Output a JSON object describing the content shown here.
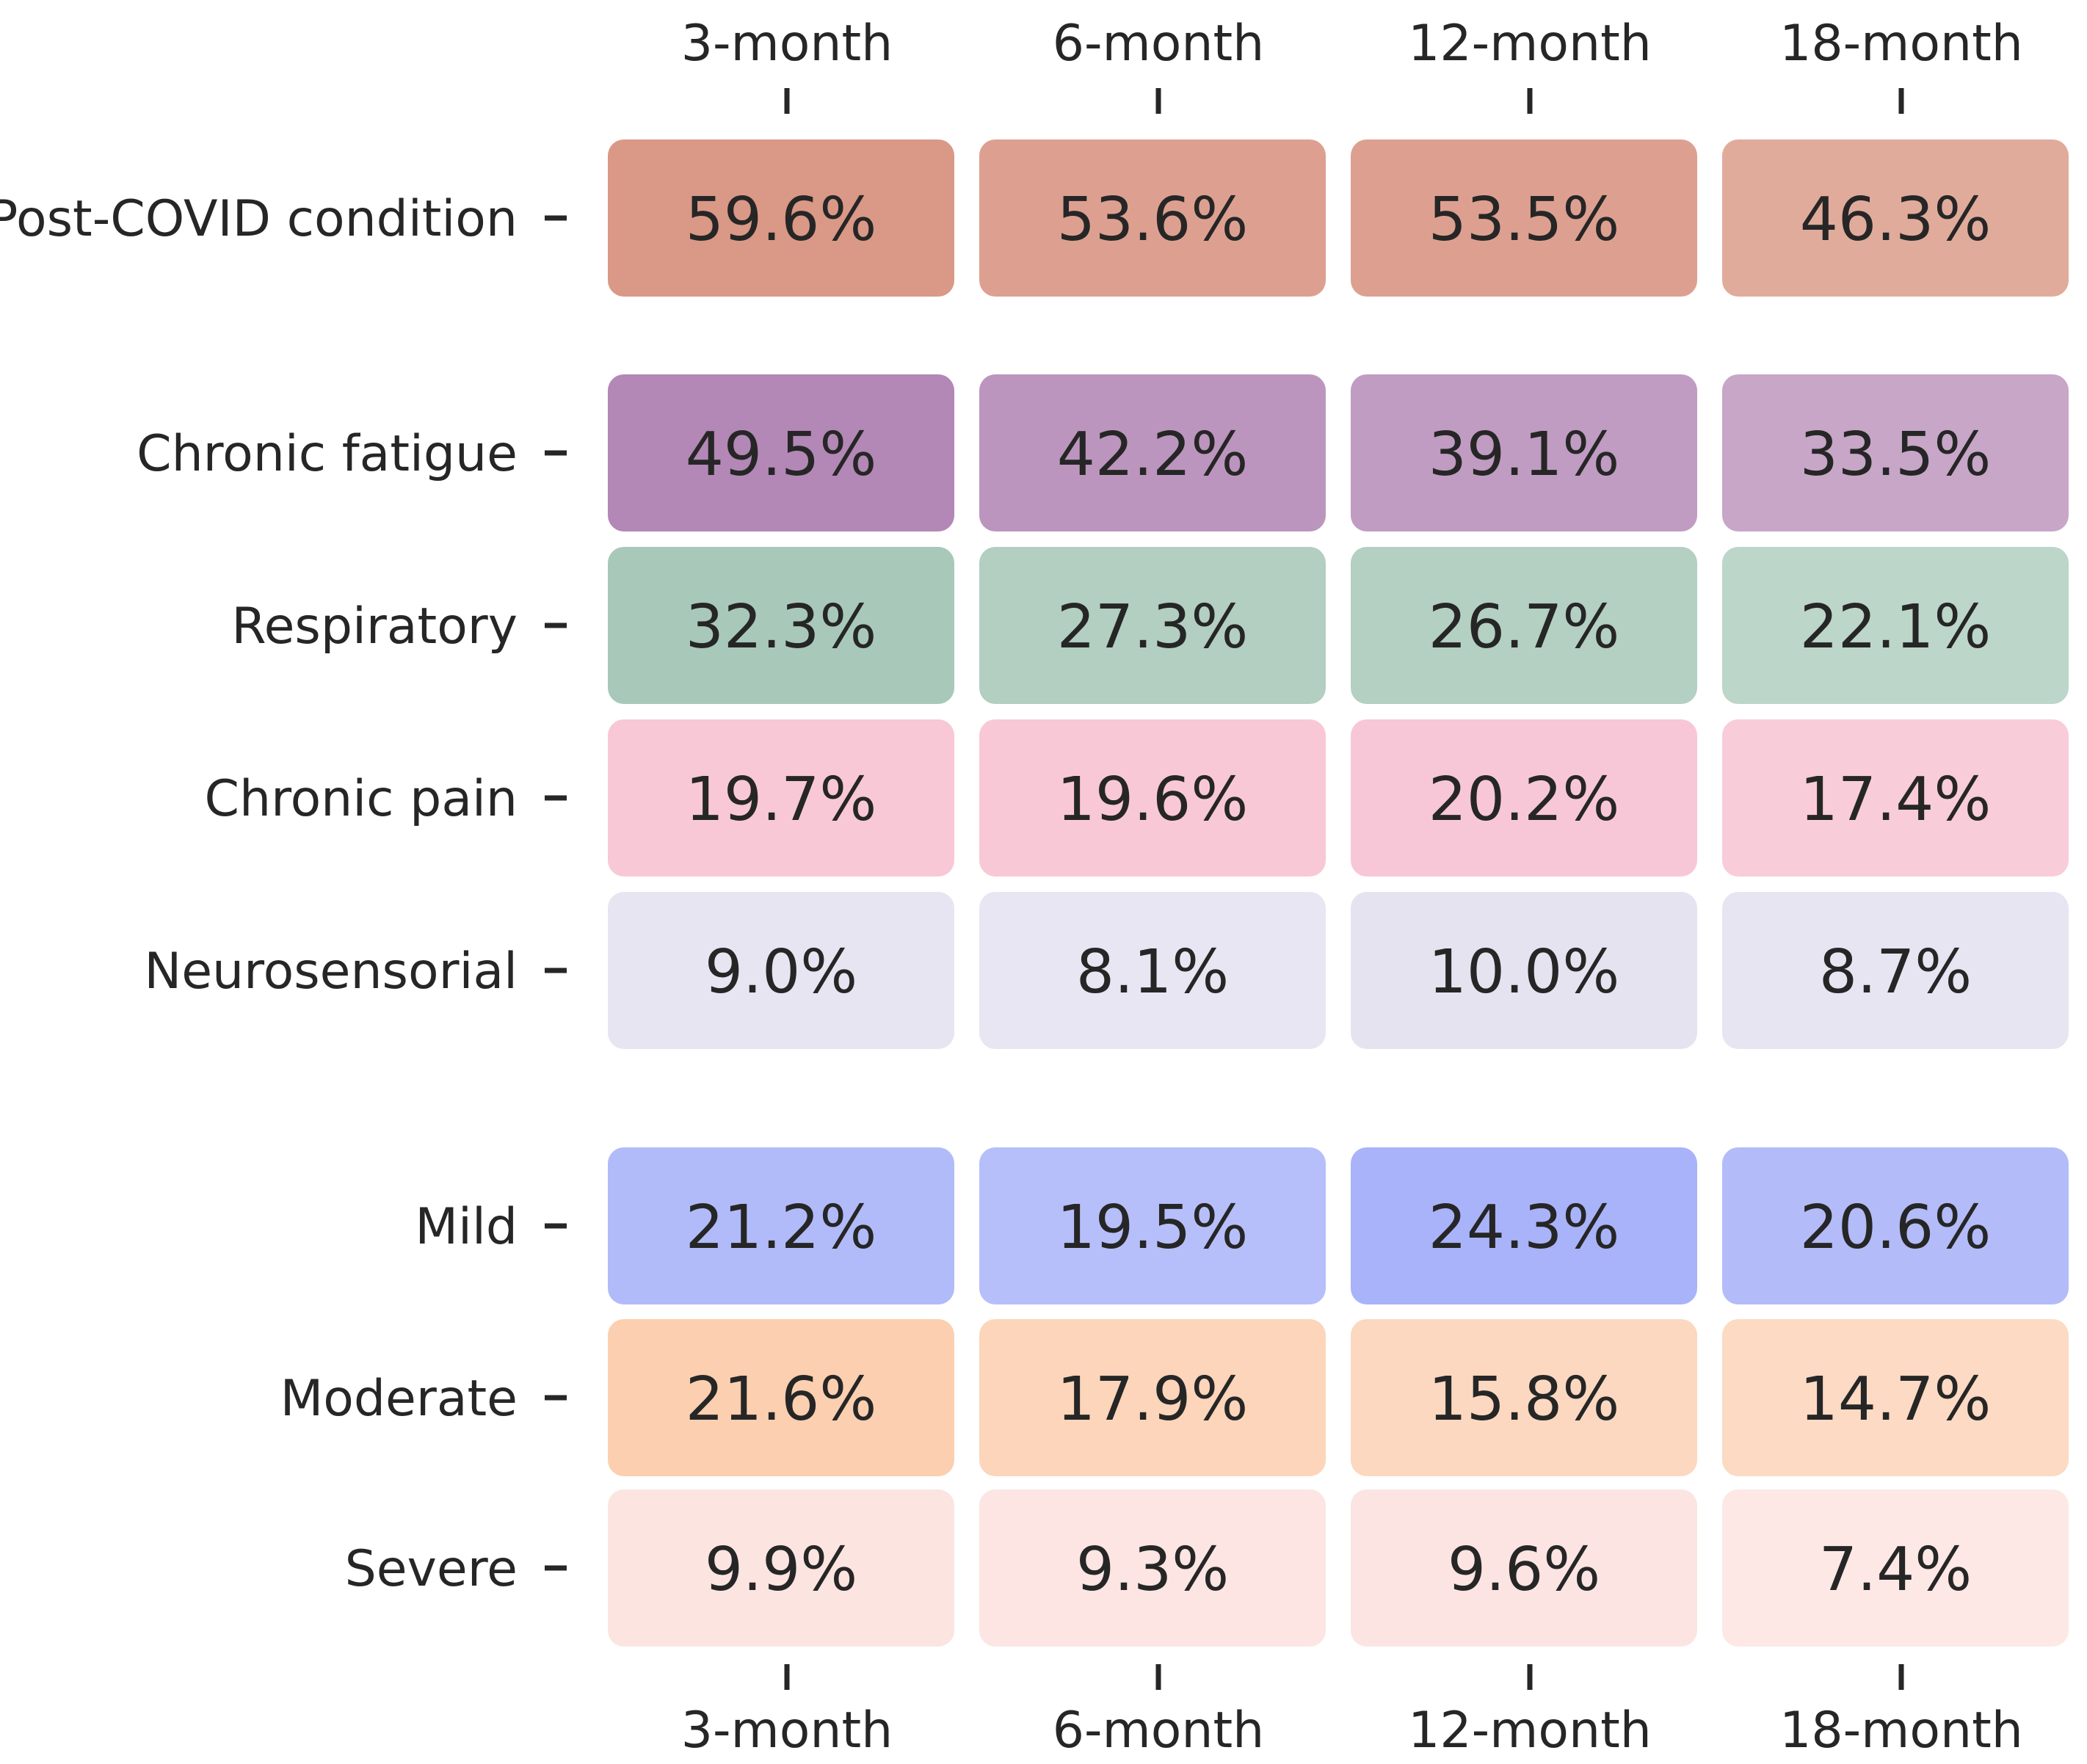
{
  "chart_data": {
    "type": "heatmap",
    "title": "",
    "xlabel": "",
    "ylabel": "",
    "columns": [
      "3-month",
      "6-month",
      "12-month",
      "18-month"
    ],
    "groups": [
      {
        "rows": [
          {
            "label": "Post-COVID condition",
            "values": [
              59.6,
              53.6,
              53.5,
              46.3
            ],
            "display": [
              "59.6%",
              "53.6%",
              "53.5%",
              "46.3%"
            ],
            "color": "#c8654a",
            "max": 65
          }
        ]
      },
      {
        "rows": [
          {
            "label": "Chronic fatigue",
            "values": [
              49.5,
              42.2,
              39.1,
              33.5
            ],
            "display": [
              "49.5%",
              "42.2%",
              "39.1%",
              "33.5%"
            ],
            "color": "#7c2f80",
            "max": 65
          },
          {
            "label": "Respiratory",
            "values": [
              32.3,
              27.3,
              26.7,
              22.1
            ],
            "display": [
              "32.3%",
              "27.3%",
              "26.7%",
              "22.1%"
            ],
            "color": "#2f7f58",
            "max": 65
          },
          {
            "label": "Chronic pain",
            "values": [
              19.7,
              19.6,
              20.2,
              17.4
            ],
            "display": [
              "19.7%",
              "19.6%",
              "20.2%",
              "17.4%"
            ],
            "color": "#ee6f97",
            "max": 45
          },
          {
            "label": "Neurosensorial",
            "values": [
              9.0,
              8.1,
              10.0,
              8.7
            ],
            "display": [
              "9.0%",
              "8.1%",
              "10.0%",
              "8.7%"
            ],
            "color": "#9b92c9",
            "max": 45
          }
        ]
      },
      {
        "rows": [
          {
            "label": "Mild",
            "values": [
              21.2,
              19.5,
              24.3,
              20.6
            ],
            "display": [
              "21.2%",
              "19.5%",
              "24.3%",
              "20.6%"
            ],
            "color": "#4d63f2",
            "max": 40
          },
          {
            "label": "Moderate",
            "values": [
              21.6,
              17.9,
              15.8,
              14.7
            ],
            "display": [
              "21.6%",
              "17.9%",
              "15.8%",
              "14.7%"
            ],
            "color": "#f6924e",
            "max": 40
          },
          {
            "label": "Severe",
            "values": [
              9.9,
              9.3,
              9.6,
              7.4
            ],
            "display": [
              "9.9%",
              "9.3%",
              "9.6%",
              "7.4%"
            ],
            "color": "#f59a90",
            "max": 40
          }
        ]
      }
    ]
  }
}
